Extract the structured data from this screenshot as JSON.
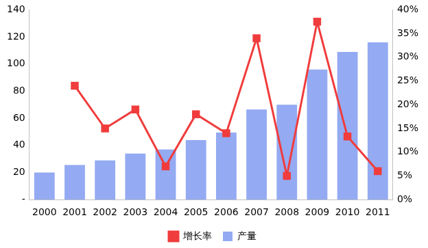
{
  "chart_data": {
    "type": "bar",
    "categories": [
      "2000",
      "2001",
      "2002",
      "2003",
      "2004",
      "2005",
      "2006",
      "2007",
      "2008",
      "2009",
      "2010",
      "2011"
    ],
    "series": [
      {
        "name": "产量",
        "type": "bar",
        "color": "#94aaf2",
        "axis": "y",
        "values": [
          20,
          25.5,
          29,
          34,
          37,
          44,
          49.5,
          66.5,
          70,
          96,
          109,
          116
        ]
      },
      {
        "name": "增长率",
        "type": "line",
        "color": "#f03c3c",
        "axis": "y2",
        "marker": "square",
        "line_style": "solid",
        "values": [
          null,
          24,
          15,
          19,
          7,
          18,
          14,
          34,
          5,
          37.5,
          13.3,
          6
        ]
      }
    ],
    "ylim": [
      0,
      140
    ],
    "yticks": [
      {
        "value": 0,
        "label": "-"
      },
      20,
      40,
      60,
      80,
      100,
      120,
      140
    ],
    "y2lim": [
      0,
      40
    ],
    "y2ticks": [
      {
        "value": 0,
        "label": "0%"
      },
      {
        "value": 5,
        "label": "5%"
      },
      {
        "value": 10,
        "label": "10%"
      },
      {
        "value": 15,
        "label": "15%"
      },
      {
        "value": 20,
        "label": "20%"
      },
      {
        "value": 25,
        "label": "25%"
      },
      {
        "value": 30,
        "label": "30%"
      },
      {
        "value": 35,
        "label": "35%"
      },
      {
        "value": 40,
        "label": "40%"
      }
    ],
    "grid": false,
    "legend": "bottom"
  }
}
